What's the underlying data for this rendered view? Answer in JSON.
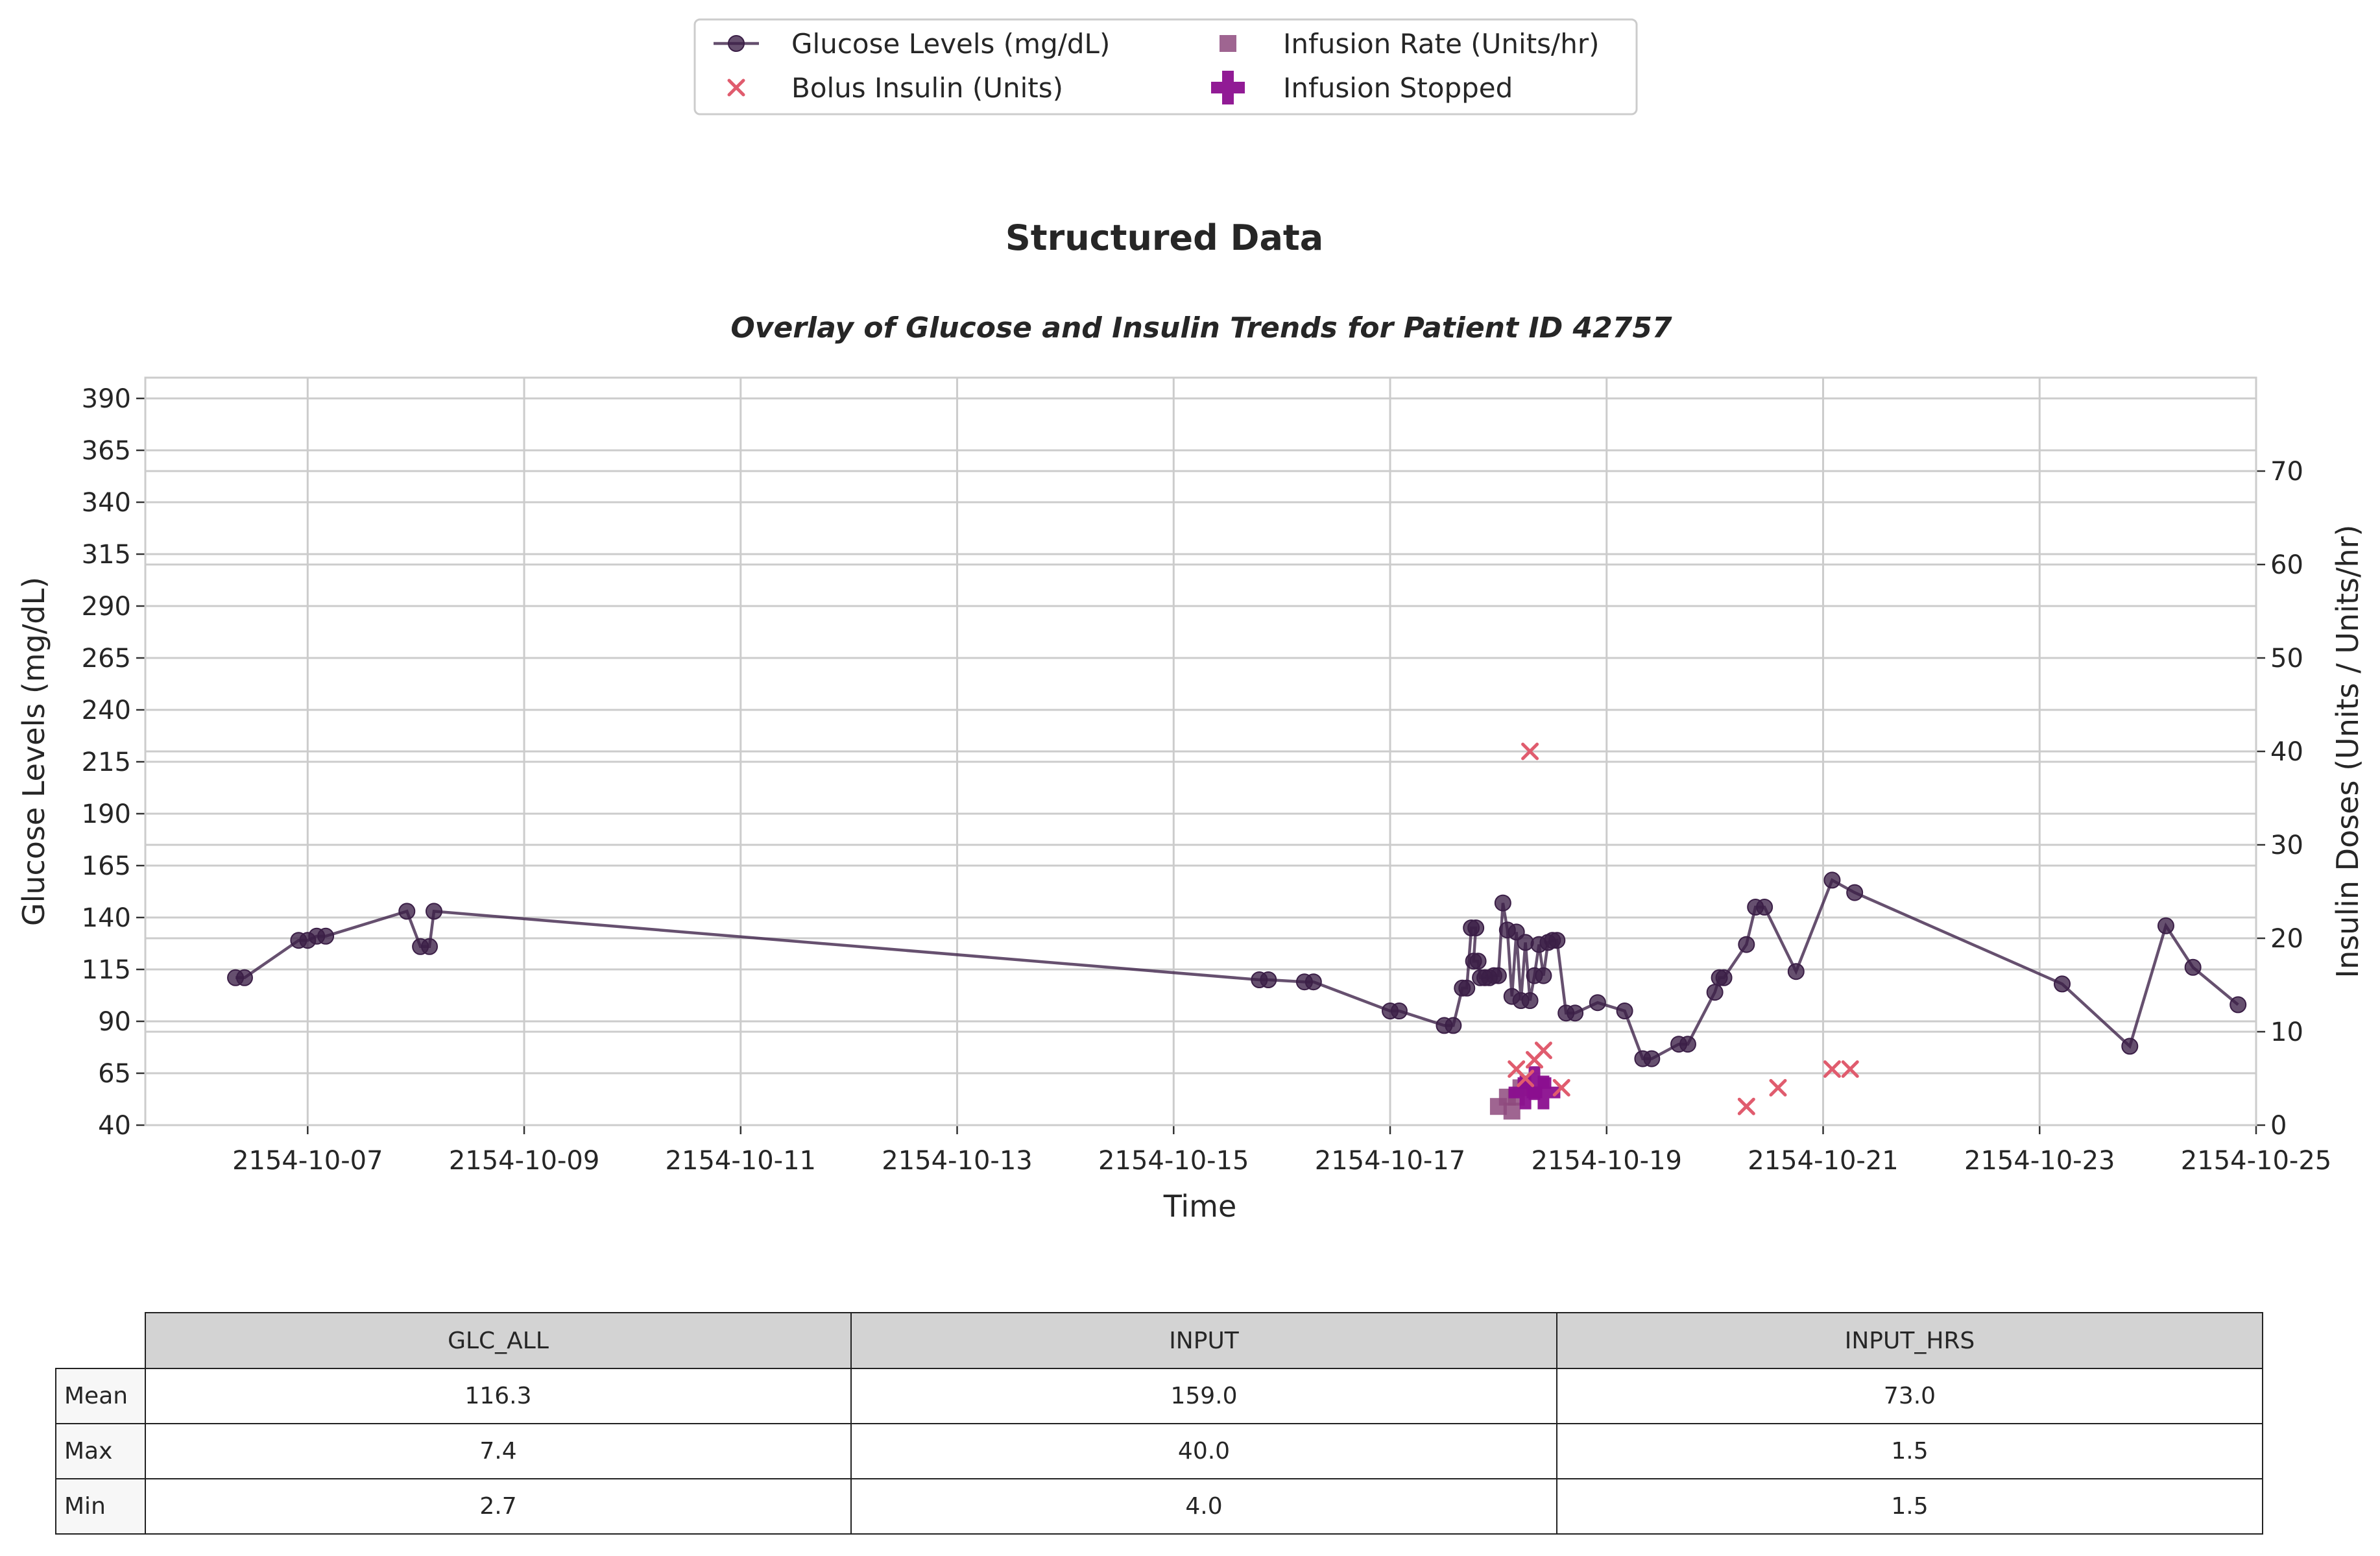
{
  "chart_data": {
    "type": "line",
    "title": "Structured Data",
    "subtitle": "Overlay of Glucose and Insulin Trends for Patient ID 42757",
    "xlabel": "Time",
    "ylabel": "Glucose Levels (mg/dL)",
    "y2label": "Insulin Doses (Units / Units/hr)",
    "xlim": [
      "2154-10-05T12:00",
      "2154-10-25T00:00"
    ],
    "ylim": [
      40,
      400
    ],
    "y2lim": [
      0,
      80
    ],
    "x_ticks": [
      "2154-10-07",
      "2154-10-09",
      "2154-10-11",
      "2154-10-13",
      "2154-10-15",
      "2154-10-17",
      "2154-10-19",
      "2154-10-21",
      "2154-10-23",
      "2154-10-25"
    ],
    "y_ticks": [
      40,
      65,
      90,
      115,
      140,
      165,
      190,
      215,
      240,
      265,
      290,
      315,
      340,
      365,
      390
    ],
    "y2_ticks": [
      0,
      10,
      20,
      30,
      40,
      50,
      60,
      70
    ],
    "grid": true,
    "legend_position": "top-center",
    "legend": [
      "Glucose Levels (mg/dL)",
      "Bolus Insulin (Units)",
      "Infusion Rate (Units/hr)",
      "Infusion Stopped"
    ],
    "colors": {
      "glucose": "#3b1f47",
      "bolus": "#e05c6e",
      "infusion": "#8e4a7e",
      "stopped": "#8b0f8f",
      "grid": "#cccccc"
    },
    "series": [
      {
        "name": "Glucose Levels (mg/dL)",
        "axis": "left",
        "style": "line-marker",
        "points": [
          [
            "2154-10-06T08:00",
            111
          ],
          [
            "2154-10-06T10:00",
            111
          ],
          [
            "2154-10-06T22:00",
            129
          ],
          [
            "2154-10-07T00:00",
            129
          ],
          [
            "2154-10-07T02:00",
            131
          ],
          [
            "2154-10-07T04:00",
            131
          ],
          [
            "2154-10-07T22:00",
            143
          ],
          [
            "2154-10-08T01:00",
            126
          ],
          [
            "2154-10-08T03:00",
            126
          ],
          [
            "2154-10-08T04:00",
            143
          ],
          [
            "2154-10-15T19:00",
            110
          ],
          [
            "2154-10-15T21:00",
            110
          ],
          [
            "2154-10-16T05:00",
            109
          ],
          [
            "2154-10-16T07:00",
            109
          ],
          [
            "2154-10-17T00:00",
            95
          ],
          [
            "2154-10-17T02:00",
            95
          ],
          [
            "2154-10-17T12:00",
            88
          ],
          [
            "2154-10-17T14:00",
            88
          ],
          [
            "2154-10-17T16:00",
            106
          ],
          [
            "2154-10-17T17:00",
            106
          ],
          [
            "2154-10-17T18:00",
            135
          ],
          [
            "2154-10-17T19:00",
            135
          ],
          [
            "2154-10-17T18:30",
            119
          ],
          [
            "2154-10-17T19:30",
            119
          ],
          [
            "2154-10-17T20:00",
            111
          ],
          [
            "2154-10-17T21:00",
            111
          ],
          [
            "2154-10-17T22:00",
            111
          ],
          [
            "2154-10-17T23:00",
            112
          ],
          [
            "2154-10-18T00:00",
            112
          ],
          [
            "2154-10-18T01:00",
            147
          ],
          [
            "2154-10-18T02:00",
            134
          ],
          [
            "2154-10-18T03:00",
            102
          ],
          [
            "2154-10-18T04:00",
            133
          ],
          [
            "2154-10-18T05:00",
            100
          ],
          [
            "2154-10-18T06:00",
            128
          ],
          [
            "2154-10-18T07:00",
            100
          ],
          [
            "2154-10-18T08:00",
            112
          ],
          [
            "2154-10-18T09:00",
            127
          ],
          [
            "2154-10-18T10:00",
            112
          ],
          [
            "2154-10-18T11:00",
            128
          ],
          [
            "2154-10-18T12:00",
            129
          ],
          [
            "2154-10-18T13:00",
            129
          ],
          [
            "2154-10-18T15:00",
            94
          ],
          [
            "2154-10-18T17:00",
            94
          ],
          [
            "2154-10-18T22:00",
            99
          ],
          [
            "2154-10-19T04:00",
            95
          ],
          [
            "2154-10-19T08:00",
            72
          ],
          [
            "2154-10-19T10:00",
            72
          ],
          [
            "2154-10-19T16:00",
            79
          ],
          [
            "2154-10-19T18:00",
            79
          ],
          [
            "2154-10-20T00:00",
            104
          ],
          [
            "2154-10-20T01:00",
            111
          ],
          [
            "2154-10-20T02:00",
            111
          ],
          [
            "2154-10-20T07:00",
            127
          ],
          [
            "2154-10-20T09:00",
            145
          ],
          [
            "2154-10-20T11:00",
            145
          ],
          [
            "2154-10-20T18:00",
            114
          ],
          [
            "2154-10-21T02:00",
            158
          ],
          [
            "2154-10-21T07:00",
            152
          ],
          [
            "2154-10-23T05:00",
            108
          ],
          [
            "2154-10-23T20:00",
            78
          ],
          [
            "2154-10-24T04:00",
            136
          ],
          [
            "2154-10-24T10:00",
            116
          ],
          [
            "2154-10-24T20:00",
            98
          ]
        ]
      },
      {
        "name": "Bolus Insulin (Units)",
        "axis": "right",
        "style": "x-marker",
        "points": [
          [
            "2154-10-18T04:00",
            6
          ],
          [
            "2154-10-18T06:00",
            5
          ],
          [
            "2154-10-18T07:00",
            40
          ],
          [
            "2154-10-18T08:00",
            7
          ],
          [
            "2154-10-18T10:00",
            8
          ],
          [
            "2154-10-18T14:00",
            4
          ],
          [
            "2154-10-20T07:00",
            2
          ],
          [
            "2154-10-20T14:00",
            4
          ],
          [
            "2154-10-21T02:00",
            6
          ],
          [
            "2154-10-21T06:00",
            6
          ]
        ]
      },
      {
        "name": "Infusion Rate (Units/hr)",
        "axis": "right",
        "style": "square-marker",
        "points": [
          [
            "2154-10-18T00:00",
            2
          ],
          [
            "2154-10-18T02:00",
            3
          ],
          [
            "2154-10-18T03:00",
            1.5
          ],
          [
            "2154-10-18T04:00",
            3
          ],
          [
            "2154-10-18T05:00",
            4
          ]
        ]
      },
      {
        "name": "Infusion Stopped",
        "axis": "right",
        "style": "plus-marker",
        "points": [
          [
            "2154-10-18T06:00",
            3.5
          ],
          [
            "2154-10-18T08:00",
            4.5
          ],
          [
            "2154-10-18T10:00",
            3.5
          ]
        ]
      }
    ]
  },
  "table": {
    "columns": [
      "GLC_ALL",
      "INPUT",
      "INPUT_HRS"
    ],
    "rows": [
      {
        "label": "Mean",
        "values": [
          "116.3",
          "159.0",
          "73.0"
        ]
      },
      {
        "label": "Max",
        "values": [
          "7.4",
          "40.0",
          "1.5"
        ]
      },
      {
        "label": "Min",
        "values": [
          "2.7",
          "4.0",
          "1.5"
        ]
      }
    ]
  }
}
